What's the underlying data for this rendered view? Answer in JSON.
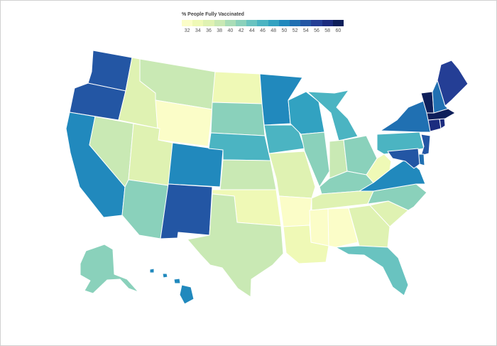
{
  "legend": {
    "title": "% People Fully Vaccinated",
    "ticks": [
      "32",
      "34",
      "36",
      "38",
      "40",
      "42",
      "44",
      "46",
      "48",
      "50",
      "52",
      "54",
      "56",
      "58",
      "60"
    ],
    "swatches": [
      "#fbfdc8",
      "#eff9b6",
      "#dff2b2",
      "#c9e9b4",
      "#a9ddb7",
      "#8ad1bb",
      "#69c3c0",
      "#4bb4c2",
      "#32a2c1",
      "#2189bd",
      "#2070b2",
      "#2356a4",
      "#243e95",
      "#1c2c7f",
      "#0e1f5a"
    ]
  },
  "map_data": {
    "metric": "% People Fully Vaccinated",
    "colors": {
      "c32": "#fbfdc8",
      "c34": "#eff9b6",
      "c36": "#dff2b2",
      "c38": "#c9e9b4",
      "c40": "#a9ddb7",
      "c42": "#8ad1bb",
      "c44": "#69c3c0",
      "c46": "#4bb4c2",
      "c48": "#32a2c1",
      "c50": "#2189bd",
      "c52": "#2070b2",
      "c54": "#2356a4",
      "c56": "#243e95",
      "c58": "#1c2c7f",
      "c60": "#0e1f5a"
    },
    "states": [
      {
        "id": "WA",
        "value": 54
      },
      {
        "id": "OR",
        "value": 53
      },
      {
        "id": "CA",
        "value": 50
      },
      {
        "id": "NV",
        "value": 38
      },
      {
        "id": "ID",
        "value": 35
      },
      {
        "id": "MT",
        "value": 38
      },
      {
        "id": "WY",
        "value": 32
      },
      {
        "id": "UT",
        "value": 35
      },
      {
        "id": "AZ",
        "value": 42
      },
      {
        "id": "CO",
        "value": 50
      },
      {
        "id": "NM",
        "value": 54
      },
      {
        "id": "ND",
        "value": 34
      },
      {
        "id": "SD",
        "value": 42
      },
      {
        "id": "NE",
        "value": 46
      },
      {
        "id": "KS",
        "value": 38
      },
      {
        "id": "OK",
        "value": 34
      },
      {
        "id": "TX",
        "value": 38
      },
      {
        "id": "MN",
        "value": 50
      },
      {
        "id": "IA",
        "value": 46
      },
      {
        "id": "MO",
        "value": 36
      },
      {
        "id": "AR",
        "value": 32
      },
      {
        "id": "LA",
        "value": 33
      },
      {
        "id": "WI",
        "value": 47
      },
      {
        "id": "IL",
        "value": 42
      },
      {
        "id": "MI",
        "value": 46
      },
      {
        "id": "IN",
        "value": 38
      },
      {
        "id": "OH",
        "value": 42
      },
      {
        "id": "KY",
        "value": 42
      },
      {
        "id": "TN",
        "value": 36
      },
      {
        "id": "MS",
        "value": 32
      },
      {
        "id": "AL",
        "value": 32
      },
      {
        "id": "GA",
        "value": 36
      },
      {
        "id": "FL",
        "value": 44
      },
      {
        "id": "SC",
        "value": 36
      },
      {
        "id": "NC",
        "value": 42
      },
      {
        "id": "VA",
        "value": 50
      },
      {
        "id": "WV",
        "value": 34
      },
      {
        "id": "PA",
        "value": 46
      },
      {
        "id": "NY",
        "value": 51
      },
      {
        "id": "NJ",
        "value": 54
      },
      {
        "id": "DE",
        "value": 52
      },
      {
        "id": "MD",
        "value": 54
      },
      {
        "id": "CT",
        "value": 58
      },
      {
        "id": "RI",
        "value": 58
      },
      {
        "id": "MA",
        "value": 60
      },
      {
        "id": "VT",
        "value": 60
      },
      {
        "id": "NH",
        "value": 52
      },
      {
        "id": "ME",
        "value": 55
      },
      {
        "id": "AK",
        "value": 42
      },
      {
        "id": "HI",
        "value": 50
      }
    ]
  }
}
